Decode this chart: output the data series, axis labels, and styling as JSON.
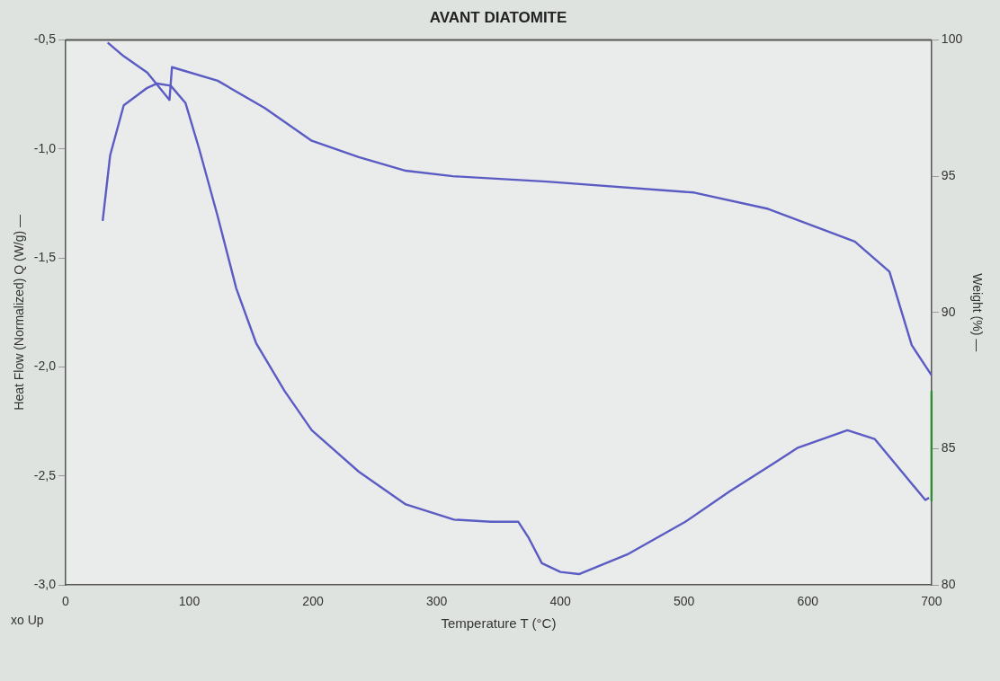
{
  "chart_data": {
    "type": "line",
    "title": "AVANT DIATOMITE",
    "xlabel": "Temperature T (°C)",
    "ylabel": "Heat Flow (Normalized) Q (W/g) —",
    "y2label": "Weight (%) —",
    "annotations": [
      "xo Up"
    ],
    "xlim": [
      0,
      700
    ],
    "xticks": [
      0,
      100,
      200,
      300,
      400,
      500,
      600,
      700
    ],
    "ylim": [
      -3,
      -0.5
    ],
    "yticks": [
      {
        "value": -3,
        "label": "-3,0"
      },
      {
        "value": -2.5,
        "label": "-2,5"
      },
      {
        "value": -2,
        "label": "-2,0"
      },
      {
        "value": -1.5,
        "label": "-1,5"
      },
      {
        "value": -1,
        "label": "-1,0"
      },
      {
        "value": -0.5,
        "label": "-0,5"
      }
    ],
    "y2lim": [
      80,
      100
    ],
    "y2ticks": [
      80,
      85,
      90,
      95,
      100
    ],
    "grid": false,
    "legend": false,
    "marker": "none",
    "line_style": "solid",
    "series": [
      {
        "color": "#5b5bc4",
        "x": [
          30,
          36,
          47,
          66,
          74,
          85,
          97,
          108,
          123,
          138,
          154,
          177,
          199,
          237,
          275,
          314,
          344,
          366,
          374,
          385,
          400,
          415,
          454,
          501,
          537,
          573,
          592,
          632,
          654,
          676,
          695,
          698
        ],
        "values": [
          -1.33,
          -1.03,
          -0.8,
          -0.72,
          -0.7,
          -0.71,
          -0.79,
          -1.0,
          -1.31,
          -1.64,
          -1.89,
          -2.11,
          -2.29,
          -2.48,
          -2.63,
          -2.7,
          -2.71,
          -2.71,
          -2.78,
          -2.9,
          -2.94,
          -2.95,
          -2.86,
          -2.71,
          -2.57,
          -2.44,
          -2.37,
          -2.29,
          -2.33,
          -2.48,
          -2.61,
          -2.6
        ]
      },
      {
        "color": "#5b5bc4",
        "axis": "y2",
        "x": [
          34,
          47,
          66,
          84,
          86,
          123,
          161,
          199,
          237,
          275,
          313,
          389,
          508,
          568,
          638,
          666,
          684,
          700
        ],
        "values": [
          99.9,
          99.4,
          98.8,
          97.8,
          99.0,
          98.5,
          97.5,
          96.3,
          95.7,
          95.2,
          95.0,
          94.8,
          94.4,
          93.8,
          92.6,
          91.5,
          88.8,
          87.7
        ]
      },
      {
        "color": "#2e8b2e",
        "axis": "y2",
        "x": [
          700,
          700
        ],
        "values": [
          87.1,
          83.1
        ]
      }
    ]
  }
}
